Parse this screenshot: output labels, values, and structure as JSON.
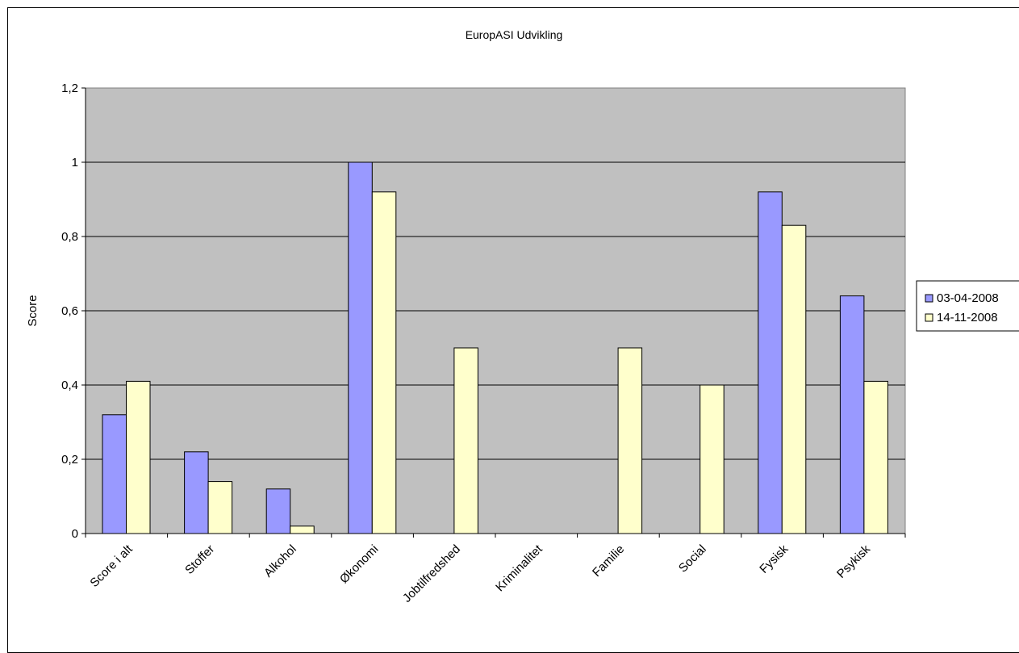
{
  "chart_data": {
    "type": "bar",
    "title": "EuropASI Udvikling",
    "xlabel": "",
    "ylabel": "Score",
    "ylim": [
      0,
      1.2
    ],
    "yticks": [
      "0",
      "0,2",
      "0,4",
      "0,6",
      "0,8",
      "1",
      "1,2"
    ],
    "grid": true,
    "legend_position": "right",
    "plot_background": "#c0c0c0",
    "categories": [
      "Score i alt",
      "Stoffer",
      "Alkohol",
      "Økonomi",
      "Jobtilfredshed",
      "Kriminalitet",
      "Familie",
      "Social",
      "Fysisk",
      "Psykisk"
    ],
    "series": [
      {
        "name": "03-04-2008",
        "color": "#9999ff",
        "values": [
          0.32,
          0.22,
          0.12,
          1.0,
          0,
          0,
          0,
          0,
          0.92,
          0.64
        ]
      },
      {
        "name": "14-11-2008",
        "color": "#ffffcc",
        "values": [
          0.41,
          0.14,
          0.02,
          0.92,
          0.5,
          0,
          0.5,
          0.4,
          0.83,
          0.41
        ]
      }
    ]
  }
}
